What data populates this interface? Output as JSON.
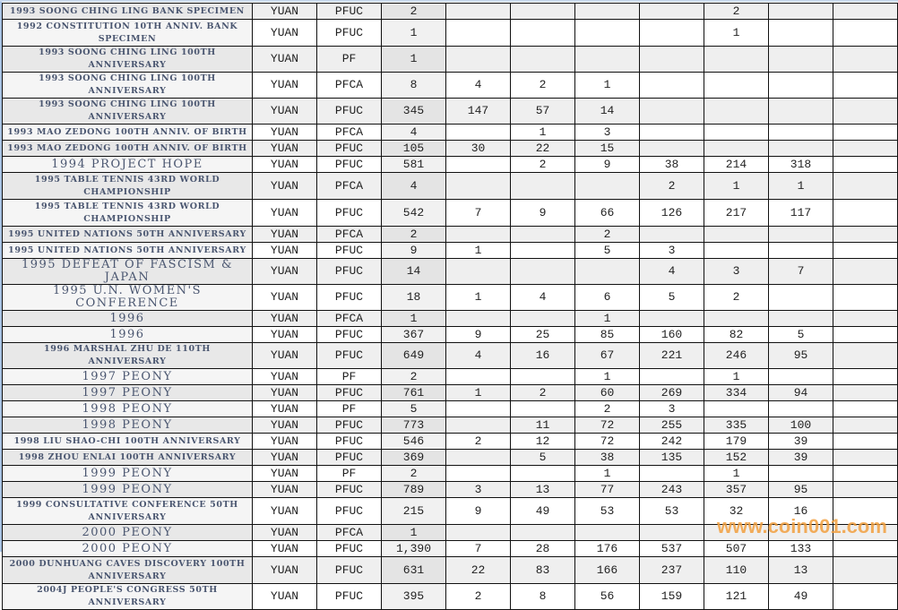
{
  "table": {
    "rows": [
      {
        "name": "1993 SOONG CHING LING BANK SPECIMEN",
        "unit": "YUAN",
        "grade": "PFUC",
        "total": "2",
        "counts": [
          "",
          "",
          "",
          "",
          "2",
          "",
          ""
        ]
      },
      {
        "name": "1992 CONSTITUTION 10TH ANNIV. BANK SPECIMEN",
        "unit": "YUAN",
        "grade": "PFUC",
        "total": "1",
        "counts": [
          "",
          "",
          "",
          "",
          "1",
          "",
          ""
        ]
      },
      {
        "name": "1993 SOONG CHING LING 100TH ANNIVERSARY",
        "unit": "YUAN",
        "grade": "PF",
        "total": "1",
        "counts": [
          "",
          "",
          "",
          "",
          "",
          "",
          ""
        ]
      },
      {
        "name": "1993 SOONG CHING LING 100TH ANNIVERSARY",
        "unit": "YUAN",
        "grade": "PFCA",
        "total": "8",
        "counts": [
          "4",
          "2",
          "1",
          "",
          "",
          "",
          ""
        ]
      },
      {
        "name": "1993 SOONG CHING LING 100TH ANNIVERSARY",
        "unit": "YUAN",
        "grade": "PFUC",
        "total": "345",
        "counts": [
          "147",
          "57",
          "14",
          "",
          "",
          "",
          ""
        ]
      },
      {
        "name": "1993 MAO ZEDONG 100TH ANNIV. OF BIRTH",
        "unit": "YUAN",
        "grade": "PFCA",
        "total": "4",
        "counts": [
          "",
          "1",
          "3",
          "",
          "",
          "",
          ""
        ]
      },
      {
        "name": "1993 MAO ZEDONG 100TH ANNIV. OF BIRTH",
        "unit": "YUAN",
        "grade": "PFUC",
        "total": "105",
        "counts": [
          "30",
          "22",
          "15",
          "",
          "",
          "",
          ""
        ]
      },
      {
        "name": "1994 PROJECT HOPE",
        "unit": "YUAN",
        "grade": "PFUC",
        "total": "581",
        "counts": [
          "",
          "2",
          "9",
          "38",
          "214",
          "318",
          ""
        ]
      },
      {
        "name": "1995 TABLE TENNIS 43RD WORLD CHAMPIONSHIP",
        "unit": "YUAN",
        "grade": "PFCA",
        "total": "4",
        "counts": [
          "",
          "",
          "",
          "2",
          "1",
          "1",
          ""
        ]
      },
      {
        "name": "1995 TABLE TENNIS 43RD WORLD CHAMPIONSHIP",
        "unit": "YUAN",
        "grade": "PFUC",
        "total": "542",
        "counts": [
          "7",
          "9",
          "66",
          "126",
          "217",
          "117",
          ""
        ]
      },
      {
        "name": "1995 UNITED NATIONS 50TH ANNIVERSARY",
        "unit": "YUAN",
        "grade": "PFCA",
        "total": "2",
        "counts": [
          "",
          "",
          "2",
          "",
          "",
          "",
          ""
        ]
      },
      {
        "name": "1995 UNITED NATIONS 50TH ANNIVERSARY",
        "unit": "YUAN",
        "grade": "PFUC",
        "total": "9",
        "counts": [
          "1",
          "",
          "5",
          "3",
          "",
          "",
          ""
        ]
      },
      {
        "name": "1995 DEFEAT OF FASCISM & JAPAN",
        "unit": "YUAN",
        "grade": "PFUC",
        "total": "14",
        "counts": [
          "",
          "",
          "",
          "4",
          "3",
          "7",
          ""
        ]
      },
      {
        "name": "1995 U.N. WOMEN'S CONFERENCE",
        "unit": "YUAN",
        "grade": "PFUC",
        "total": "18",
        "counts": [
          "1",
          "4",
          "6",
          "5",
          "2",
          "",
          ""
        ]
      },
      {
        "name": "1996",
        "unit": "YUAN",
        "grade": "PFCA",
        "total": "1",
        "counts": [
          "",
          "",
          "1",
          "",
          "",
          "",
          ""
        ]
      },
      {
        "name": "1996",
        "unit": "YUAN",
        "grade": "PFUC",
        "total": "367",
        "counts": [
          "9",
          "25",
          "85",
          "160",
          "82",
          "5",
          ""
        ]
      },
      {
        "name": "1996 MARSHAL ZHU DE 110TH ANNIVERSARY",
        "unit": "YUAN",
        "grade": "PFUC",
        "total": "649",
        "counts": [
          "4",
          "16",
          "67",
          "221",
          "246",
          "95",
          ""
        ]
      },
      {
        "name": "1997 PEONY",
        "unit": "YUAN",
        "grade": "PF",
        "total": "2",
        "counts": [
          "",
          "",
          "1",
          "",
          "1",
          "",
          ""
        ]
      },
      {
        "name": "1997 PEONY",
        "unit": "YUAN",
        "grade": "PFUC",
        "total": "761",
        "counts": [
          "1",
          "2",
          "60",
          "269",
          "334",
          "94",
          ""
        ]
      },
      {
        "name": "1998 PEONY",
        "unit": "YUAN",
        "grade": "PF",
        "total": "5",
        "counts": [
          "",
          "",
          "2",
          "3",
          "",
          "",
          ""
        ]
      },
      {
        "name": "1998 PEONY",
        "unit": "YUAN",
        "grade": "PFUC",
        "total": "773",
        "counts": [
          "",
          "11",
          "72",
          "255",
          "335",
          "100",
          ""
        ]
      },
      {
        "name": "1998 LIU SHAO-CHI 100TH ANNIVERSARY",
        "unit": "YUAN",
        "grade": "PFUC",
        "total": "546",
        "counts": [
          "2",
          "12",
          "72",
          "242",
          "179",
          "39",
          ""
        ]
      },
      {
        "name": "1998 ZHOU ENLAI 100TH ANNIVERSARY",
        "unit": "YUAN",
        "grade": "PFUC",
        "total": "369",
        "counts": [
          "",
          "5",
          "38",
          "135",
          "152",
          "39",
          ""
        ]
      },
      {
        "name": "1999 PEONY",
        "unit": "YUAN",
        "grade": "PF",
        "total": "2",
        "counts": [
          "",
          "",
          "1",
          "",
          "1",
          "",
          ""
        ]
      },
      {
        "name": "1999 PEONY",
        "unit": "YUAN",
        "grade": "PFUC",
        "total": "789",
        "counts": [
          "3",
          "13",
          "77",
          "243",
          "357",
          "95",
          ""
        ]
      },
      {
        "name": "1999 CONSULTATIVE CONFERENCE 50TH ANNIVERSARY",
        "unit": "YUAN",
        "grade": "PFUC",
        "total": "215",
        "counts": [
          "9",
          "49",
          "53",
          "53",
          "32",
          "16",
          ""
        ]
      },
      {
        "name": "2000 PEONY",
        "unit": "YUAN",
        "grade": "PFCA",
        "total": "1",
        "counts": [
          "",
          "",
          "",
          "",
          "",
          "",
          ""
        ]
      },
      {
        "name": "2000 PEONY",
        "unit": "YUAN",
        "grade": "PFUC",
        "total": "1,390",
        "counts": [
          "7",
          "28",
          "176",
          "537",
          "507",
          "133",
          ""
        ]
      },
      {
        "name": "2000 DUNHUANG CAVES DISCOVERY 100TH ANNIVERSARY",
        "unit": "YUAN",
        "grade": "PFUC",
        "total": "631",
        "counts": [
          "22",
          "83",
          "166",
          "237",
          "110",
          "13",
          ""
        ]
      },
      {
        "name": "2004J PEOPLE'S CONGRESS 50TH ANNIVERSARY",
        "unit": "YUAN",
        "grade": "PFUC",
        "total": "395",
        "counts": [
          "2",
          "8",
          "56",
          "159",
          "121",
          "49",
          ""
        ]
      }
    ]
  },
  "watermark": "www.coin001.com"
}
